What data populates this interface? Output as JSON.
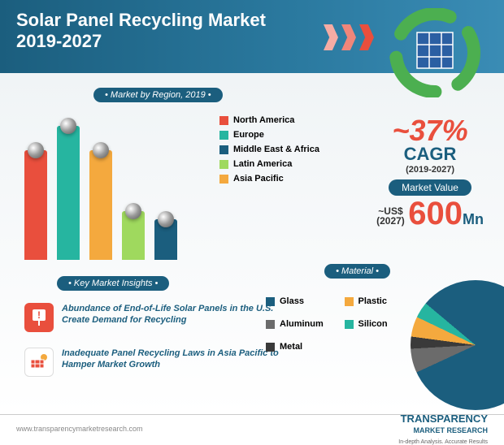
{
  "header": {
    "title": "Solar Panel Recycling Market",
    "years": "2019-2027"
  },
  "region_section": {
    "pill": "• Market by Region, 2019 •",
    "bars": [
      {
        "label": "North America",
        "height": 135,
        "color": "#e94f3d"
      },
      {
        "label": "Europe",
        "height": 165,
        "color": "#26b5a0"
      },
      {
        "label": "Asia Pacific",
        "height": 135,
        "color": "#f4a93e"
      },
      {
        "label": "Latin America",
        "height": 60,
        "color": "#9fd95e"
      },
      {
        "label": "Middle East & Africa",
        "height": 50,
        "color": "#1b5e7e"
      }
    ],
    "legend_order": [
      {
        "label": "North America",
        "color": "#e94f3d"
      },
      {
        "label": "Europe",
        "color": "#26b5a0"
      },
      {
        "label": "Middle East & Africa",
        "color": "#1b5e7e"
      },
      {
        "label": "Latin America",
        "color": "#9fd95e"
      },
      {
        "label": "Asia Pacific",
        "color": "#f4a93e"
      }
    ]
  },
  "cagr": {
    "value": "~37%",
    "label": "CAGR",
    "years": "(2019-2027)",
    "mv_pill": "Market Value",
    "mv_prefix_line1": "~US$",
    "mv_prefix_line2": "(2027)",
    "mv_value": "600",
    "mv_suffix": "Mn"
  },
  "insights": {
    "pill": "• Key Market Insights •",
    "items": [
      {
        "icon_color": "#e94f3d",
        "text": "Abundance of End-of-Life Solar Panels in the U.S. Create Demand for Recycling"
      },
      {
        "icon_color": "#1b5e7e",
        "text": "Inadequate Panel Recycling Laws in Asia Pacific to Hamper Market Growth"
      }
    ]
  },
  "material": {
    "pill": "• Material •",
    "legend": [
      {
        "label": "Glass",
        "color": "#1b5e7e"
      },
      {
        "label": "Plastic",
        "color": "#f4a93e"
      },
      {
        "label": "Aluminum",
        "color": "#6b6b6b"
      },
      {
        "label": "Silicon",
        "color": "#26b5a0"
      },
      {
        "label": "Metal",
        "color": "#3a3a3a"
      }
    ],
    "pie_slices": [
      {
        "color": "#1b5e7e",
        "pct": 82
      },
      {
        "color": "#6b6b6b",
        "pct": 6
      },
      {
        "color": "#3a3a3a",
        "pct": 3
      },
      {
        "color": "#f4a93e",
        "pct": 5
      },
      {
        "color": "#26b5a0",
        "pct": 4
      }
    ]
  },
  "footer": {
    "url": "www.transparencymarketresearch.com",
    "brand_line1": "TRANSPARENCY",
    "brand_line2": "MARKET RESEARCH",
    "tagline": "In-depth Analysis. Accurate Results"
  }
}
